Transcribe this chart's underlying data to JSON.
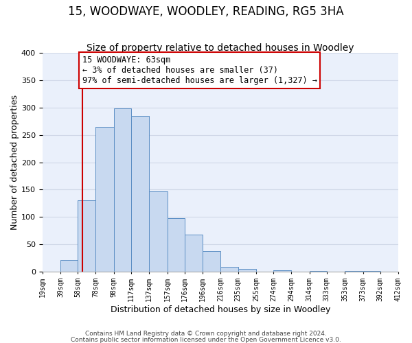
{
  "title": "15, WOODWAYE, WOODLEY, READING, RG5 3HA",
  "subtitle": "Size of property relative to detached houses in Woodley",
  "xlabel": "Distribution of detached houses by size in Woodley",
  "ylabel": "Number of detached properties",
  "bin_edges": [
    19,
    39,
    58,
    78,
    98,
    117,
    137,
    157,
    176,
    196,
    216,
    235,
    255,
    274,
    294,
    314,
    333,
    353,
    373,
    392,
    412
  ],
  "bin_counts": [
    0,
    22,
    131,
    264,
    299,
    285,
    147,
    98,
    68,
    38,
    9,
    5,
    0,
    2,
    0,
    1,
    0,
    1,
    1,
    0
  ],
  "bar_color": "#c8d9f0",
  "bar_edge_color": "#5b8ec4",
  "vline_x": 63,
  "vline_color": "#cc0000",
  "annotation_text": "15 WOODWAYE: 63sqm\n← 3% of detached houses are smaller (37)\n97% of semi-detached houses are larger (1,327) →",
  "annotation_box_edge": "#cc0000",
  "ylim": [
    0,
    400
  ],
  "tick_labels": [
    "19sqm",
    "39sqm",
    "58sqm",
    "78sqm",
    "98sqm",
    "117sqm",
    "137sqm",
    "157sqm",
    "176sqm",
    "196sqm",
    "216sqm",
    "235sqm",
    "255sqm",
    "274sqm",
    "294sqm",
    "314sqm",
    "333sqm",
    "353sqm",
    "373sqm",
    "392sqm",
    "412sqm"
  ],
  "footer1": "Contains HM Land Registry data © Crown copyright and database right 2024.",
  "footer2": "Contains public sector information licensed under the Open Government Licence v3.0.",
  "grid_color": "#d0d8e8",
  "background_color": "#eaf0fb",
  "title_fontsize": 12,
  "subtitle_fontsize": 10
}
